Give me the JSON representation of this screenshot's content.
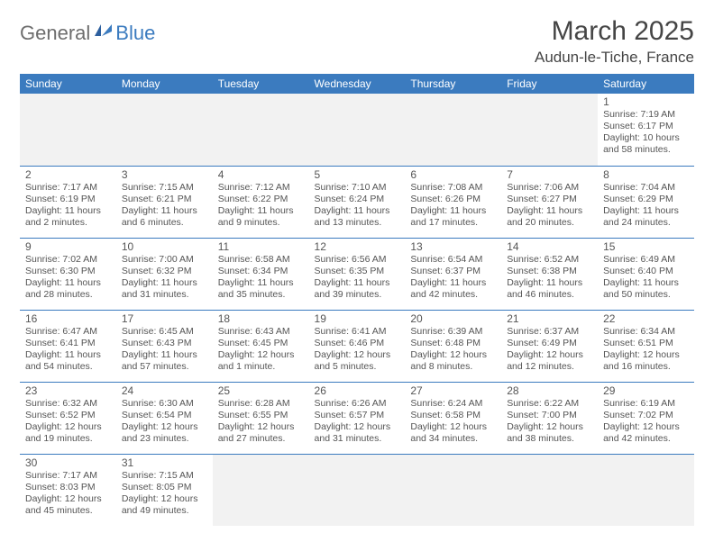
{
  "logo": {
    "gray": "General",
    "blue": "Blue"
  },
  "title": {
    "month": "March 2025",
    "location": "Audun-le-Tiche, France"
  },
  "colors": {
    "header_bg": "#3b7bbf",
    "border": "#3b7bbf",
    "text": "#555555",
    "blank_bg": "#f2f2f2"
  },
  "weekdays": [
    "Sunday",
    "Monday",
    "Tuesday",
    "Wednesday",
    "Thursday",
    "Friday",
    "Saturday"
  ],
  "weeks": [
    [
      null,
      null,
      null,
      null,
      null,
      null,
      {
        "n": "1",
        "sr": "Sunrise: 7:19 AM",
        "ss": "Sunset: 6:17 PM",
        "dl": "Daylight: 10 hours and 58 minutes."
      }
    ],
    [
      {
        "n": "2",
        "sr": "Sunrise: 7:17 AM",
        "ss": "Sunset: 6:19 PM",
        "dl": "Daylight: 11 hours and 2 minutes."
      },
      {
        "n": "3",
        "sr": "Sunrise: 7:15 AM",
        "ss": "Sunset: 6:21 PM",
        "dl": "Daylight: 11 hours and 6 minutes."
      },
      {
        "n": "4",
        "sr": "Sunrise: 7:12 AM",
        "ss": "Sunset: 6:22 PM",
        "dl": "Daylight: 11 hours and 9 minutes."
      },
      {
        "n": "5",
        "sr": "Sunrise: 7:10 AM",
        "ss": "Sunset: 6:24 PM",
        "dl": "Daylight: 11 hours and 13 minutes."
      },
      {
        "n": "6",
        "sr": "Sunrise: 7:08 AM",
        "ss": "Sunset: 6:26 PM",
        "dl": "Daylight: 11 hours and 17 minutes."
      },
      {
        "n": "7",
        "sr": "Sunrise: 7:06 AM",
        "ss": "Sunset: 6:27 PM",
        "dl": "Daylight: 11 hours and 20 minutes."
      },
      {
        "n": "8",
        "sr": "Sunrise: 7:04 AM",
        "ss": "Sunset: 6:29 PM",
        "dl": "Daylight: 11 hours and 24 minutes."
      }
    ],
    [
      {
        "n": "9",
        "sr": "Sunrise: 7:02 AM",
        "ss": "Sunset: 6:30 PM",
        "dl": "Daylight: 11 hours and 28 minutes."
      },
      {
        "n": "10",
        "sr": "Sunrise: 7:00 AM",
        "ss": "Sunset: 6:32 PM",
        "dl": "Daylight: 11 hours and 31 minutes."
      },
      {
        "n": "11",
        "sr": "Sunrise: 6:58 AM",
        "ss": "Sunset: 6:34 PM",
        "dl": "Daylight: 11 hours and 35 minutes."
      },
      {
        "n": "12",
        "sr": "Sunrise: 6:56 AM",
        "ss": "Sunset: 6:35 PM",
        "dl": "Daylight: 11 hours and 39 minutes."
      },
      {
        "n": "13",
        "sr": "Sunrise: 6:54 AM",
        "ss": "Sunset: 6:37 PM",
        "dl": "Daylight: 11 hours and 42 minutes."
      },
      {
        "n": "14",
        "sr": "Sunrise: 6:52 AM",
        "ss": "Sunset: 6:38 PM",
        "dl": "Daylight: 11 hours and 46 minutes."
      },
      {
        "n": "15",
        "sr": "Sunrise: 6:49 AM",
        "ss": "Sunset: 6:40 PM",
        "dl": "Daylight: 11 hours and 50 minutes."
      }
    ],
    [
      {
        "n": "16",
        "sr": "Sunrise: 6:47 AM",
        "ss": "Sunset: 6:41 PM",
        "dl": "Daylight: 11 hours and 54 minutes."
      },
      {
        "n": "17",
        "sr": "Sunrise: 6:45 AM",
        "ss": "Sunset: 6:43 PM",
        "dl": "Daylight: 11 hours and 57 minutes."
      },
      {
        "n": "18",
        "sr": "Sunrise: 6:43 AM",
        "ss": "Sunset: 6:45 PM",
        "dl": "Daylight: 12 hours and 1 minute."
      },
      {
        "n": "19",
        "sr": "Sunrise: 6:41 AM",
        "ss": "Sunset: 6:46 PM",
        "dl": "Daylight: 12 hours and 5 minutes."
      },
      {
        "n": "20",
        "sr": "Sunrise: 6:39 AM",
        "ss": "Sunset: 6:48 PM",
        "dl": "Daylight: 12 hours and 8 minutes."
      },
      {
        "n": "21",
        "sr": "Sunrise: 6:37 AM",
        "ss": "Sunset: 6:49 PM",
        "dl": "Daylight: 12 hours and 12 minutes."
      },
      {
        "n": "22",
        "sr": "Sunrise: 6:34 AM",
        "ss": "Sunset: 6:51 PM",
        "dl": "Daylight: 12 hours and 16 minutes."
      }
    ],
    [
      {
        "n": "23",
        "sr": "Sunrise: 6:32 AM",
        "ss": "Sunset: 6:52 PM",
        "dl": "Daylight: 12 hours and 19 minutes."
      },
      {
        "n": "24",
        "sr": "Sunrise: 6:30 AM",
        "ss": "Sunset: 6:54 PM",
        "dl": "Daylight: 12 hours and 23 minutes."
      },
      {
        "n": "25",
        "sr": "Sunrise: 6:28 AM",
        "ss": "Sunset: 6:55 PM",
        "dl": "Daylight: 12 hours and 27 minutes."
      },
      {
        "n": "26",
        "sr": "Sunrise: 6:26 AM",
        "ss": "Sunset: 6:57 PM",
        "dl": "Daylight: 12 hours and 31 minutes."
      },
      {
        "n": "27",
        "sr": "Sunrise: 6:24 AM",
        "ss": "Sunset: 6:58 PM",
        "dl": "Daylight: 12 hours and 34 minutes."
      },
      {
        "n": "28",
        "sr": "Sunrise: 6:22 AM",
        "ss": "Sunset: 7:00 PM",
        "dl": "Daylight: 12 hours and 38 minutes."
      },
      {
        "n": "29",
        "sr": "Sunrise: 6:19 AM",
        "ss": "Sunset: 7:02 PM",
        "dl": "Daylight: 12 hours and 42 minutes."
      }
    ],
    [
      {
        "n": "30",
        "sr": "Sunrise: 7:17 AM",
        "ss": "Sunset: 8:03 PM",
        "dl": "Daylight: 12 hours and 45 minutes."
      },
      {
        "n": "31",
        "sr": "Sunrise: 7:15 AM",
        "ss": "Sunset: 8:05 PM",
        "dl": "Daylight: 12 hours and 49 minutes."
      },
      null,
      null,
      null,
      null,
      null
    ]
  ]
}
